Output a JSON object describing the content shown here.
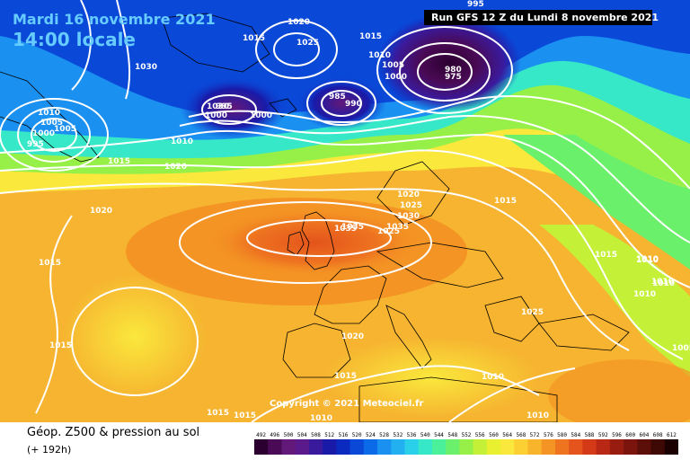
{
  "map_title": {
    "line1": "Mardi 16 novembre 2021",
    "line2": "14:00 locale"
  },
  "run_info": "Run GFS 12 Z du Lundi 8 novembre 2021",
  "copyright": "Copyright © 2021 Meteociel.fr",
  "footer": {
    "title": "Géop. Z500 & pression au sol",
    "subtitle": "(+ 192h)"
  },
  "legend": {
    "labels": [
      "492",
      "496",
      "500",
      "504",
      "508",
      "512",
      "516",
      "520",
      "524",
      "528",
      "532",
      "536",
      "540",
      "544",
      "548",
      "552",
      "556",
      "560",
      "564",
      "568",
      "572",
      "576",
      "580",
      "584",
      "588",
      "592",
      "596",
      "600",
      "604",
      "608",
      "612"
    ],
    "colors": [
      "#2b0030",
      "#4a0a55",
      "#62197a",
      "#5a1a8c",
      "#3a1a9c",
      "#1a1aa8",
      "#0a2ac0",
      "#0a48d8",
      "#0a6ae8",
      "#1a90f0",
      "#22b0f0",
      "#2ad0ea",
      "#36e8c8",
      "#4af09a",
      "#6af06a",
      "#96f048",
      "#c4f038",
      "#e8f030",
      "#fae83c",
      "#fcd032",
      "#f8b42a",
      "#f49424",
      "#ee7420",
      "#e4541c",
      "#d43a18",
      "#b82814",
      "#981c10",
      "#7a140c",
      "#5c0e08",
      "#3e0804",
      "#1a0000"
    ]
  },
  "map_colors": {
    "ocean_warm": "#f4b830",
    "ridge_core": "#e8641c",
    "cold_core": "#4a1a6e",
    "isobar": "#ffffff",
    "coast": "#000000"
  },
  "isobar_labels": [
    "1030",
    "1035",
    "1025",
    "1020",
    "1015",
    "1015",
    "1025",
    "1010",
    "1005",
    "1000",
    "990",
    "985",
    "980",
    "975",
    "995",
    "1015",
    "1010",
    "1005",
    "1000",
    "995",
    "1010",
    "1005",
    "1000",
    "995",
    "1030",
    "1000",
    "1020",
    "1015",
    "1020",
    "1020",
    "1025",
    "1030",
    "1015",
    "1015",
    "1010",
    "1010",
    "1010",
    "1015",
    "1015",
    "1005",
    "1020",
    "1025",
    "1035",
    "1010",
    "1015",
    "1035",
    "1015",
    "1010",
    "1010",
    "1010",
    "1010"
  ]
}
